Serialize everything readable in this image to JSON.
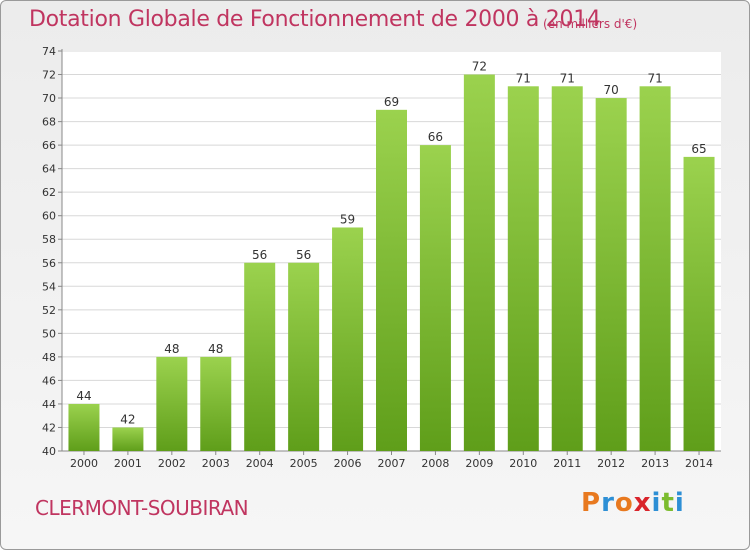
{
  "chart_data": {
    "type": "bar",
    "title": "Dotation Globale de Fonctionnement de 2000 à 2014",
    "unit": "(en milliers d'€)",
    "categories": [
      "2000",
      "2001",
      "2002",
      "2003",
      "2004",
      "2005",
      "2006",
      "2007",
      "2008",
      "2009",
      "2010",
      "2011",
      "2012",
      "2013",
      "2014"
    ],
    "values": [
      44,
      42,
      48,
      48,
      56,
      56,
      59,
      69,
      66,
      72,
      71,
      71,
      70,
      71,
      65
    ],
    "ylim": [
      40,
      74
    ],
    "yticks": [
      40,
      42,
      44,
      46,
      48,
      50,
      52,
      54,
      56,
      58,
      60,
      62,
      64,
      66,
      68,
      70,
      72,
      74
    ],
    "grid": true,
    "bar_color": "#7cbc2e"
  },
  "footer": {
    "commune": "CLERMONT-SOUBIRAN",
    "logo_text": "Proxiti",
    "logo_colors": [
      "#e8791f",
      "#2d8fd5",
      "#e8791f",
      "#d9242b",
      "#2d8fd5",
      "#7cbc2e",
      "#2d8fd5"
    ]
  }
}
